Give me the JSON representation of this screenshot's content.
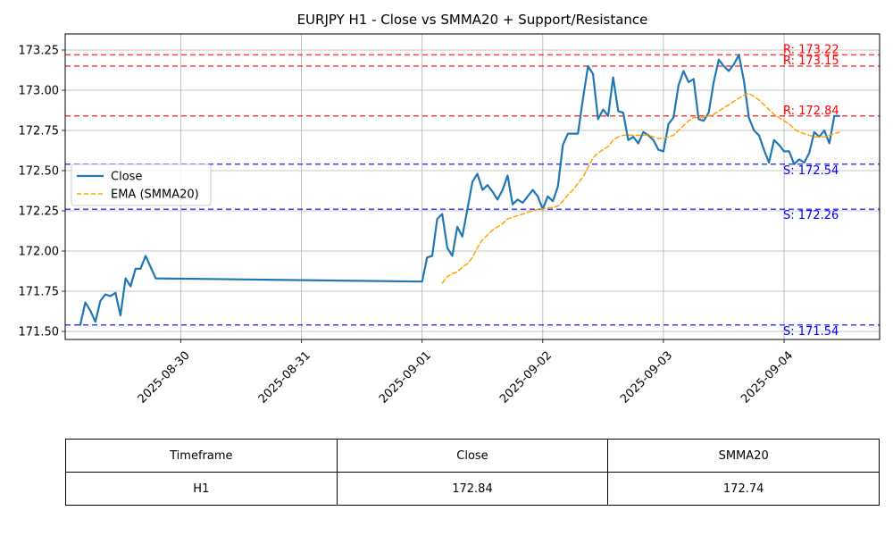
{
  "chart_data": {
    "type": "line",
    "title": "EURJPY H1 - Close vs SMMA20 + Support/Resistance",
    "xlabel": "",
    "ylabel": "",
    "x_axis": {
      "type": "date",
      "min": "2025-08-29 01:00",
      "max": "2025-09-04 19:00",
      "ticks": [
        "2025-08-30",
        "2025-08-31",
        "2025-09-01",
        "2025-09-02",
        "2025-09-03",
        "2025-09-04"
      ]
    },
    "y_axis": {
      "min": 171.45,
      "max": 173.35,
      "ticks": [
        "171.50",
        "171.75",
        "172.00",
        "172.25",
        "172.50",
        "172.75",
        "173.00",
        "173.25"
      ]
    },
    "grid": true,
    "legend_position": "center-left",
    "series": [
      {
        "name": "Close",
        "color": "#1f77b4",
        "points": [
          [
            "2025-08-29 04:00",
            171.54
          ],
          [
            "2025-08-29 05:00",
            171.68
          ],
          [
            "2025-08-29 06:00",
            171.63
          ],
          [
            "2025-08-29 07:00",
            171.56
          ],
          [
            "2025-08-29 08:00",
            171.69
          ],
          [
            "2025-08-29 09:00",
            171.73
          ],
          [
            "2025-08-29 10:00",
            171.72
          ],
          [
            "2025-08-29 11:00",
            171.74
          ],
          [
            "2025-08-29 12:00",
            171.6
          ],
          [
            "2025-08-29 13:00",
            171.83
          ],
          [
            "2025-08-29 14:00",
            171.78
          ],
          [
            "2025-08-29 15:00",
            171.89
          ],
          [
            "2025-08-29 16:00",
            171.89
          ],
          [
            "2025-08-29 17:00",
            171.97
          ],
          [
            "2025-08-29 18:00",
            171.9
          ],
          [
            "2025-08-29 19:00",
            171.83
          ],
          [
            "2025-09-01 00:00",
            171.81
          ],
          [
            "2025-09-01 01:00",
            171.96
          ],
          [
            "2025-09-01 02:00",
            171.97
          ],
          [
            "2025-09-01 03:00",
            172.2
          ],
          [
            "2025-09-01 04:00",
            172.23
          ],
          [
            "2025-09-01 05:00",
            172.02
          ],
          [
            "2025-09-01 06:00",
            171.97
          ],
          [
            "2025-09-01 07:00",
            172.15
          ],
          [
            "2025-09-01 08:00",
            172.09
          ],
          [
            "2025-09-01 09:00",
            172.26
          ],
          [
            "2025-09-01 10:00",
            172.43
          ],
          [
            "2025-09-01 11:00",
            172.48
          ],
          [
            "2025-09-01 12:00",
            172.38
          ],
          [
            "2025-09-01 13:00",
            172.41
          ],
          [
            "2025-09-01 14:00",
            172.37
          ],
          [
            "2025-09-01 15:00",
            172.32
          ],
          [
            "2025-09-01 16:00",
            172.38
          ],
          [
            "2025-09-01 17:00",
            172.47
          ],
          [
            "2025-09-01 18:00",
            172.29
          ],
          [
            "2025-09-01 19:00",
            172.32
          ],
          [
            "2025-09-01 20:00",
            172.3
          ],
          [
            "2025-09-01 21:00",
            172.34
          ],
          [
            "2025-09-01 22:00",
            172.38
          ],
          [
            "2025-09-01 23:00",
            172.34
          ],
          [
            "2025-09-02 00:00",
            172.26
          ],
          [
            "2025-09-02 01:00",
            172.34
          ],
          [
            "2025-09-02 02:00",
            172.31
          ],
          [
            "2025-09-02 03:00",
            172.4
          ],
          [
            "2025-09-02 04:00",
            172.66
          ],
          [
            "2025-09-02 05:00",
            172.73
          ],
          [
            "2025-09-02 06:00",
            172.73
          ],
          [
            "2025-09-02 07:00",
            172.73
          ],
          [
            "2025-09-02 08:00",
            172.95
          ],
          [
            "2025-09-02 09:00",
            173.15
          ],
          [
            "2025-09-02 10:00",
            173.1
          ],
          [
            "2025-09-02 11:00",
            172.82
          ],
          [
            "2025-09-02 12:00",
            172.88
          ],
          [
            "2025-09-02 13:00",
            172.84
          ],
          [
            "2025-09-02 14:00",
            173.08
          ],
          [
            "2025-09-02 15:00",
            172.87
          ],
          [
            "2025-09-02 16:00",
            172.86
          ],
          [
            "2025-09-02 17:00",
            172.69
          ],
          [
            "2025-09-02 18:00",
            172.71
          ],
          [
            "2025-09-02 19:00",
            172.67
          ],
          [
            "2025-09-02 20:00",
            172.74
          ],
          [
            "2025-09-02 21:00",
            172.72
          ],
          [
            "2025-09-02 22:00",
            172.69
          ],
          [
            "2025-09-02 23:00",
            172.63
          ],
          [
            "2025-09-03 00:00",
            172.62
          ],
          [
            "2025-09-03 01:00",
            172.79
          ],
          [
            "2025-09-03 02:00",
            172.83
          ],
          [
            "2025-09-03 03:00",
            173.03
          ],
          [
            "2025-09-03 04:00",
            173.12
          ],
          [
            "2025-09-03 05:00",
            173.05
          ],
          [
            "2025-09-03 06:00",
            173.07
          ],
          [
            "2025-09-03 07:00",
            172.82
          ],
          [
            "2025-09-03 08:00",
            172.81
          ],
          [
            "2025-09-03 09:00",
            172.86
          ],
          [
            "2025-09-03 10:00",
            173.05
          ],
          [
            "2025-09-03 11:00",
            173.19
          ],
          [
            "2025-09-03 12:00",
            173.15
          ],
          [
            "2025-09-03 13:00",
            173.12
          ],
          [
            "2025-09-03 14:00",
            173.16
          ],
          [
            "2025-09-03 15:00",
            173.22
          ],
          [
            "2025-09-03 16:00",
            173.06
          ],
          [
            "2025-09-03 17:00",
            172.83
          ],
          [
            "2025-09-03 18:00",
            172.75
          ],
          [
            "2025-09-03 19:00",
            172.72
          ],
          [
            "2025-09-03 20:00",
            172.63
          ],
          [
            "2025-09-03 21:00",
            172.55
          ],
          [
            "2025-09-03 22:00",
            172.69
          ],
          [
            "2025-09-03 23:00",
            172.66
          ],
          [
            "2025-09-04 00:00",
            172.62
          ],
          [
            "2025-09-04 01:00",
            172.62
          ],
          [
            "2025-09-04 02:00",
            172.54
          ],
          [
            "2025-09-04 03:00",
            172.57
          ],
          [
            "2025-09-04 04:00",
            172.55
          ],
          [
            "2025-09-04 05:00",
            172.61
          ],
          [
            "2025-09-04 06:00",
            172.74
          ],
          [
            "2025-09-04 07:00",
            172.71
          ],
          [
            "2025-09-04 08:00",
            172.75
          ],
          [
            "2025-09-04 09:00",
            172.67
          ],
          [
            "2025-09-04 10:00",
            172.84
          ],
          [
            "2025-09-04 11:00",
            172.84
          ]
        ]
      },
      {
        "name": "EMA (SMMA20)",
        "color": "#ffa500",
        "dashed": true,
        "points": [
          [
            "2025-09-01 04:00",
            171.8
          ],
          [
            "2025-09-01 05:00",
            171.84
          ],
          [
            "2025-09-01 06:00",
            171.86
          ],
          [
            "2025-09-01 07:00",
            171.87
          ],
          [
            "2025-09-01 08:00",
            171.9
          ],
          [
            "2025-09-01 09:00",
            171.92
          ],
          [
            "2025-09-01 10:00",
            171.96
          ],
          [
            "2025-09-01 11:00",
            172.02
          ],
          [
            "2025-09-01 12:00",
            172.07
          ],
          [
            "2025-09-01 13:00",
            172.1
          ],
          [
            "2025-09-01 14:00",
            172.13
          ],
          [
            "2025-09-01 15:00",
            172.15
          ],
          [
            "2025-09-01 16:00",
            172.17
          ],
          [
            "2025-09-01 17:00",
            172.2
          ],
          [
            "2025-09-01 18:00",
            172.21
          ],
          [
            "2025-09-01 19:00",
            172.22
          ],
          [
            "2025-09-01 20:00",
            172.23
          ],
          [
            "2025-09-01 21:00",
            172.24
          ],
          [
            "2025-09-01 22:00",
            172.25
          ],
          [
            "2025-09-01 23:00",
            172.26
          ],
          [
            "2025-09-02 00:00",
            172.26
          ],
          [
            "2025-09-02 01:00",
            172.27
          ],
          [
            "2025-09-02 02:00",
            172.27
          ],
          [
            "2025-09-02 03:00",
            172.28
          ],
          [
            "2025-09-02 04:00",
            172.31
          ],
          [
            "2025-09-02 05:00",
            172.35
          ],
          [
            "2025-09-02 06:00",
            172.38
          ],
          [
            "2025-09-02 07:00",
            172.42
          ],
          [
            "2025-09-02 08:00",
            172.46
          ],
          [
            "2025-09-02 09:00",
            172.52
          ],
          [
            "2025-09-02 10:00",
            172.58
          ],
          [
            "2025-09-02 11:00",
            172.61
          ],
          [
            "2025-09-02 12:00",
            172.63
          ],
          [
            "2025-09-02 13:00",
            172.65
          ],
          [
            "2025-09-02 14:00",
            172.69
          ],
          [
            "2025-09-02 15:00",
            172.71
          ],
          [
            "2025-09-02 16:00",
            172.72
          ],
          [
            "2025-09-02 17:00",
            172.72
          ],
          [
            "2025-09-02 18:00",
            172.72
          ],
          [
            "2025-09-02 19:00",
            172.72
          ],
          [
            "2025-09-02 20:00",
            172.72
          ],
          [
            "2025-09-02 21:00",
            172.72
          ],
          [
            "2025-09-02 22:00",
            172.71
          ],
          [
            "2025-09-02 23:00",
            172.7
          ],
          [
            "2025-09-03 00:00",
            172.7
          ],
          [
            "2025-09-03 01:00",
            172.71
          ],
          [
            "2025-09-03 02:00",
            172.72
          ],
          [
            "2025-09-03 03:00",
            172.75
          ],
          [
            "2025-09-03 04:00",
            172.78
          ],
          [
            "2025-09-03 05:00",
            172.81
          ],
          [
            "2025-09-03 06:00",
            172.83
          ],
          [
            "2025-09-03 07:00",
            172.83
          ],
          [
            "2025-09-03 08:00",
            172.83
          ],
          [
            "2025-09-03 09:00",
            172.84
          ],
          [
            "2025-09-03 10:00",
            172.85
          ],
          [
            "2025-09-03 11:00",
            172.87
          ],
          [
            "2025-09-03 12:00",
            172.89
          ],
          [
            "2025-09-03 13:00",
            172.91
          ],
          [
            "2025-09-03 14:00",
            172.93
          ],
          [
            "2025-09-03 15:00",
            172.95
          ],
          [
            "2025-09-03 16:00",
            172.97
          ],
          [
            "2025-09-03 17:00",
            172.98
          ],
          [
            "2025-09-03 18:00",
            172.96
          ],
          [
            "2025-09-03 19:00",
            172.94
          ],
          [
            "2025-09-03 20:00",
            172.91
          ],
          [
            "2025-09-03 21:00",
            172.88
          ],
          [
            "2025-09-03 22:00",
            172.85
          ],
          [
            "2025-09-03 23:00",
            172.83
          ],
          [
            "2025-09-04 00:00",
            172.81
          ],
          [
            "2025-09-04 01:00",
            172.79
          ],
          [
            "2025-09-04 02:00",
            172.76
          ],
          [
            "2025-09-04 03:00",
            172.74
          ],
          [
            "2025-09-04 04:00",
            172.73
          ],
          [
            "2025-09-04 05:00",
            172.72
          ],
          [
            "2025-09-04 06:00",
            172.71
          ],
          [
            "2025-09-04 07:00",
            172.71
          ],
          [
            "2025-09-04 08:00",
            172.71
          ],
          [
            "2025-09-04 09:00",
            172.72
          ],
          [
            "2025-09-04 10:00",
            172.73
          ],
          [
            "2025-09-04 11:00",
            172.74
          ]
        ]
      }
    ],
    "levels": [
      {
        "kind": "resistance",
        "value": 173.22,
        "label": "R: 173.22",
        "color": "#ff0000"
      },
      {
        "kind": "resistance",
        "value": 173.15,
        "label": "R: 173.15",
        "color": "#ff0000"
      },
      {
        "kind": "resistance",
        "value": 172.84,
        "label": "R: 172.84",
        "color": "#ff0000"
      },
      {
        "kind": "support",
        "value": 172.54,
        "label": "S: 172.54",
        "color": "#0000ff"
      },
      {
        "kind": "support",
        "value": 172.26,
        "label": "S: 172.26",
        "color": "#0000ff"
      },
      {
        "kind": "support",
        "value": 171.54,
        "label": "S: 171.54",
        "color": "#0000ff"
      }
    ],
    "table": {
      "headers": [
        "Timeframe",
        "Close",
        "SMMA20"
      ],
      "rows": [
        [
          "H1",
          "172.84",
          "172.74"
        ]
      ]
    }
  }
}
